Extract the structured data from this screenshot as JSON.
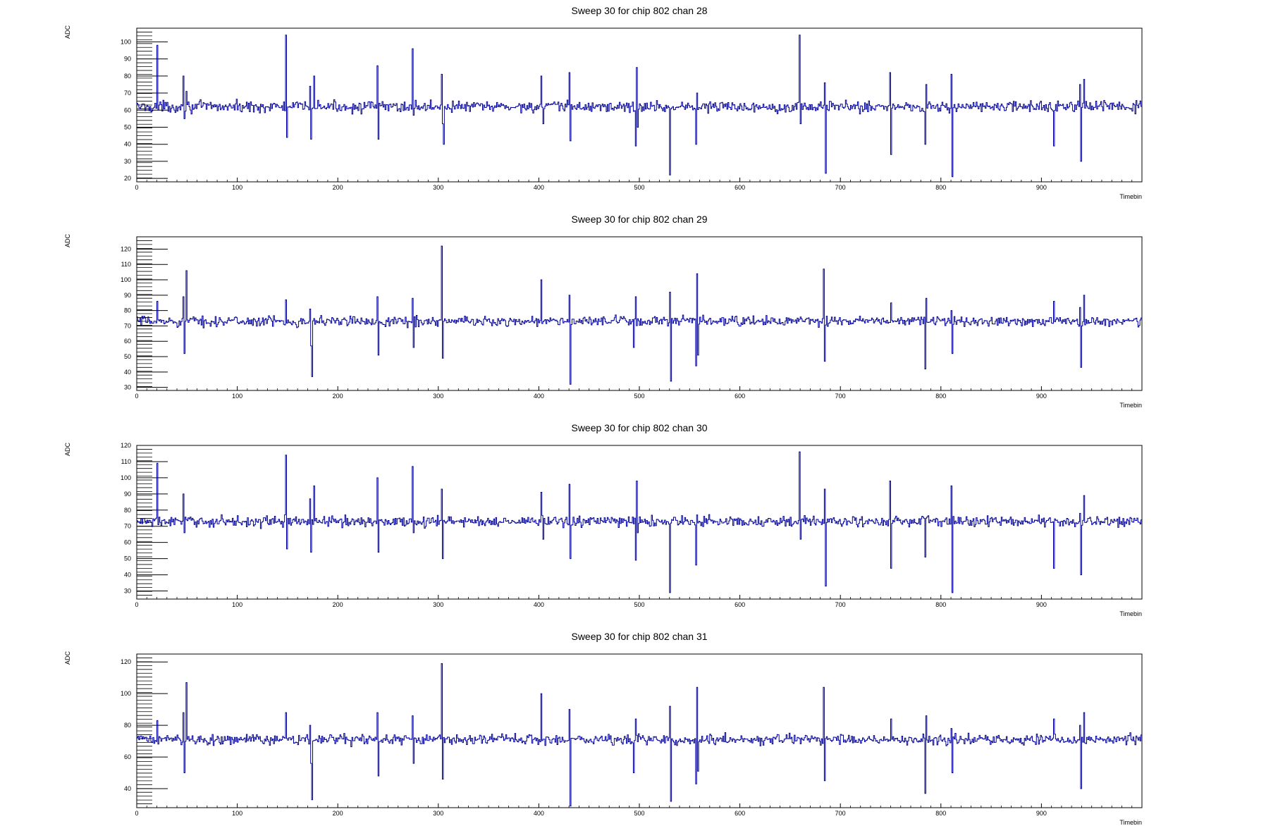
{
  "line_color": "#000099",
  "axis_color": "#000000",
  "chart_data": [
    {
      "type": "line",
      "title": "Sweep 30 for chip 802 chan 28",
      "xlabel": "Timebin",
      "ylabel": "ADC",
      "xlim": [
        0,
        1000
      ],
      "ylim": [
        18,
        108
      ],
      "xticks": [
        0,
        100,
        200,
        300,
        400,
        500,
        600,
        700,
        800,
        900
      ],
      "yticks": [
        20,
        30,
        40,
        50,
        60,
        70,
        80,
        90,
        100
      ],
      "baseline": 62,
      "series": [
        {
          "spikes": [
            [
              20,
              98
            ],
            [
              21,
              60
            ],
            [
              46,
              80
            ],
            [
              47,
              55
            ],
            [
              49,
              71
            ],
            [
              148,
              104
            ],
            [
              149,
              44
            ],
            [
              172,
              74
            ],
            [
              173,
              43
            ],
            [
              176,
              80
            ],
            [
              239,
              86
            ],
            [
              240,
              43
            ],
            [
              274,
              96
            ],
            [
              275,
              57
            ],
            [
              303,
              81
            ],
            [
              304,
              52
            ],
            [
              305,
              40
            ],
            [
              402,
              80
            ],
            [
              404,
              52
            ],
            [
              430,
              82
            ],
            [
              431,
              42
            ],
            [
              496,
              39
            ],
            [
              497,
              85
            ],
            [
              498,
              50
            ],
            [
              530,
              22
            ],
            [
              556,
              40
            ],
            [
              557,
              70
            ],
            [
              659,
              104
            ],
            [
              660,
              52
            ],
            [
              684,
              76
            ],
            [
              685,
              23
            ],
            [
              749,
              82
            ],
            [
              750,
              34
            ],
            [
              784,
              40
            ],
            [
              785,
              75
            ],
            [
              810,
              81
            ],
            [
              811,
              21
            ],
            [
              912,
              39
            ],
            [
              938,
              75
            ],
            [
              939,
              30
            ],
            [
              942,
              78
            ]
          ]
        }
      ]
    },
    {
      "type": "line",
      "title": "Sweep 30 for chip 802 chan 29",
      "xlabel": "Timebin",
      "ylabel": "ADC",
      "xlim": [
        0,
        1000
      ],
      "ylim": [
        28,
        128
      ],
      "xticks": [
        0,
        100,
        200,
        300,
        400,
        500,
        600,
        700,
        800,
        900
      ],
      "yticks": [
        30,
        40,
        50,
        60,
        70,
        80,
        90,
        100,
        110,
        120
      ],
      "baseline": 73,
      "series": [
        {
          "spikes": [
            [
              20,
              86
            ],
            [
              46,
              89
            ],
            [
              47,
              52
            ],
            [
              49,
              106
            ],
            [
              148,
              87
            ],
            [
              172,
              81
            ],
            [
              173,
              57
            ],
            [
              174,
              37
            ],
            [
              239,
              89
            ],
            [
              240,
              51
            ],
            [
              274,
              88
            ],
            [
              275,
              56
            ],
            [
              303,
              122
            ],
            [
              304,
              49
            ],
            [
              402,
              100
            ],
            [
              430,
              90
            ],
            [
              431,
              32
            ],
            [
              494,
              56
            ],
            [
              496,
              89
            ],
            [
              530,
              92
            ],
            [
              531,
              34
            ],
            [
              556,
              44
            ],
            [
              557,
              104
            ],
            [
              558,
              51
            ],
            [
              683,
              107
            ],
            [
              684,
              47
            ],
            [
              750,
              85
            ],
            [
              784,
              42
            ],
            [
              785,
              88
            ],
            [
              810,
              80
            ],
            [
              811,
              52
            ],
            [
              912,
              86
            ],
            [
              938,
              82
            ],
            [
              939,
              43
            ],
            [
              942,
              90
            ]
          ]
        }
      ]
    },
    {
      "type": "line",
      "title": "Sweep 30 for chip 802 chan 30",
      "xlabel": "Timebin",
      "ylabel": "ADC",
      "xlim": [
        0,
        1000
      ],
      "ylim": [
        25,
        120
      ],
      "xticks": [
        0,
        100,
        200,
        300,
        400,
        500,
        600,
        700,
        800,
        900
      ],
      "yticks": [
        30,
        40,
        50,
        60,
        70,
        80,
        90,
        100,
        110,
        120
      ],
      "baseline": 73,
      "series": [
        {
          "spikes": [
            [
              20,
              109
            ],
            [
              21,
              71
            ],
            [
              46,
              90
            ],
            [
              47,
              66
            ],
            [
              148,
              114
            ],
            [
              149,
              56
            ],
            [
              172,
              87
            ],
            [
              173,
              54
            ],
            [
              176,
              95
            ],
            [
              239,
              100
            ],
            [
              240,
              54
            ],
            [
              274,
              107
            ],
            [
              275,
              66
            ],
            [
              303,
              93
            ],
            [
              304,
              50
            ],
            [
              402,
              91
            ],
            [
              404,
              62
            ],
            [
              430,
              96
            ],
            [
              431,
              50
            ],
            [
              496,
              49
            ],
            [
              497,
              98
            ],
            [
              498,
              66
            ],
            [
              530,
              29
            ],
            [
              556,
              46
            ],
            [
              557,
              77
            ],
            [
              659,
              116
            ],
            [
              660,
              62
            ],
            [
              684,
              93
            ],
            [
              685,
              33
            ],
            [
              749,
              98
            ],
            [
              750,
              44
            ],
            [
              784,
              51
            ],
            [
              785,
              75
            ],
            [
              810,
              95
            ],
            [
              811,
              29
            ],
            [
              912,
              44
            ],
            [
              938,
              78
            ],
            [
              939,
              40
            ],
            [
              942,
              89
            ]
          ]
        }
      ]
    },
    {
      "type": "line",
      "title": "Sweep 30 for chip 802 chan 31",
      "xlabel": "Timebin",
      "ylabel": "ADC",
      "xlim": [
        0,
        1000
      ],
      "ylim": [
        28,
        125
      ],
      "xticks": [
        0,
        100,
        200,
        300,
        400,
        500,
        600,
        700,
        800,
        900
      ],
      "yticks": [
        40,
        60,
        80,
        100,
        120
      ],
      "baseline": 71,
      "series": [
        {
          "spikes": [
            [
              20,
              83
            ],
            [
              46,
              88
            ],
            [
              47,
              50
            ],
            [
              49,
              107
            ],
            [
              148,
              88
            ],
            [
              172,
              80
            ],
            [
              173,
              56
            ],
            [
              174,
              33
            ],
            [
              239,
              88
            ],
            [
              240,
              48
            ],
            [
              274,
              86
            ],
            [
              275,
              56
            ],
            [
              303,
              119
            ],
            [
              304,
              46
            ],
            [
              402,
              100
            ],
            [
              430,
              90
            ],
            [
              431,
              29
            ],
            [
              494,
              50
            ],
            [
              496,
              84
            ],
            [
              530,
              92
            ],
            [
              531,
              32
            ],
            [
              556,
              43
            ],
            [
              557,
              104
            ],
            [
              558,
              51
            ],
            [
              683,
              104
            ],
            [
              684,
              45
            ],
            [
              750,
              84
            ],
            [
              784,
              37
            ],
            [
              785,
              86
            ],
            [
              810,
              78
            ],
            [
              811,
              50
            ],
            [
              912,
              84
            ],
            [
              938,
              80
            ],
            [
              939,
              40
            ],
            [
              942,
              88
            ]
          ]
        }
      ]
    }
  ]
}
